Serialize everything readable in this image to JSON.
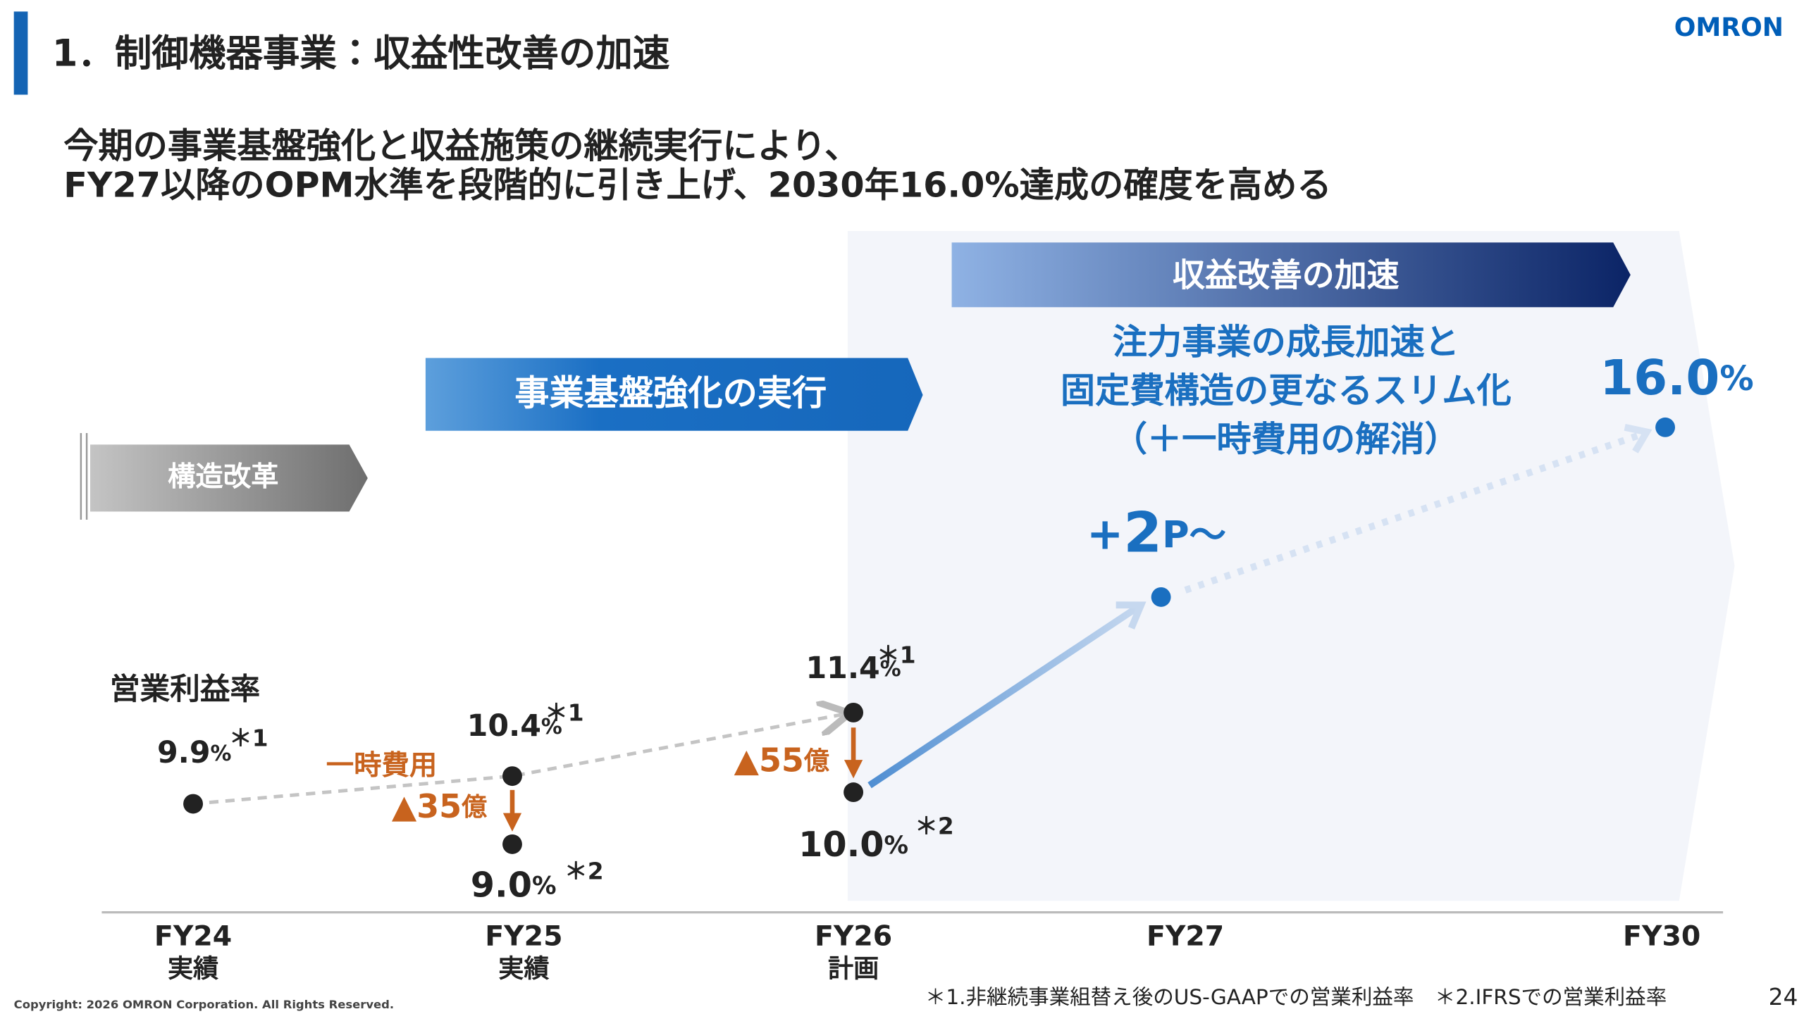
{
  "header": {
    "title": "1．制御機器事業：収益性改善の加速",
    "logo": "OMRON"
  },
  "lead": [
    "今期の事業基盤強化と収益施策の継続実行により、",
    "FY27以降のOPM水準を段階的に引き上げ、2030年16.0%達成の確度を高める"
  ],
  "phases": [
    "構造改革",
    "事業基盤強化の実行",
    "収益改善の加速"
  ],
  "panel": {
    "lines": [
      "注力事業の成長加速と",
      "固定費構造の更なるスリム化",
      "（＋一時費用の解消）"
    ],
    "gain": {
      "sign": "+",
      "value": "2",
      "unit": "P～"
    }
  },
  "metric_label": "営業利益率",
  "points": [
    {
      "value": "9.9",
      "unit": "%",
      "note": "＊1"
    },
    {
      "value": "10.4",
      "unit": "%",
      "note": "＊1"
    },
    {
      "value": "9.0",
      "unit": "%",
      "note": "＊2"
    },
    {
      "value": "11.4",
      "unit": "%",
      "note": "＊1"
    },
    {
      "value": "10.0",
      "unit": "%",
      "note": "＊2"
    },
    {
      "value": "16.0",
      "unit": "%"
    }
  ],
  "annotations": {
    "one_time": "一時費用",
    "fy25": {
      "value": "▲35",
      "unit": "億"
    },
    "fy26": {
      "value": "▲55",
      "unit": "億"
    }
  },
  "axis": [
    {
      "label": "FY24",
      "sub": "実績"
    },
    {
      "label": "FY25",
      "sub": "実績"
    },
    {
      "label": "FY26",
      "sub": "計画"
    },
    {
      "label": "FY27"
    },
    {
      "label": "FY30"
    }
  ],
  "footnote": "＊1.非継続事業組替え後のUS-GAAPでの営業利益率　＊2.IFRSでの営業利益率",
  "page": "24",
  "copyright": "Copyright: 2026 OMRON Corporation. All Rights Reserved."
}
